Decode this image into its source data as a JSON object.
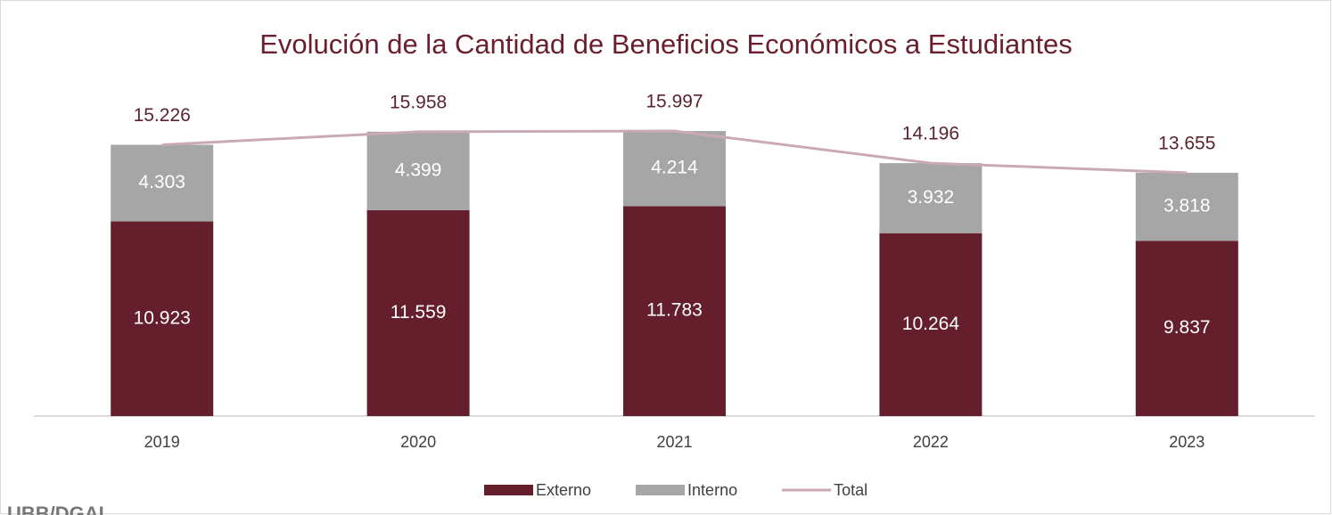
{
  "chart_data": {
    "type": "stacked_bar_line",
    "title": "Evolución de la Cantidad de Beneficios Económicos a Estudiantes",
    "categories": [
      "2019",
      "2020",
      "2021",
      "2022",
      "2023"
    ],
    "series": [
      {
        "name": "Externo",
        "color": "#641e2c",
        "values": [
          10923,
          11559,
          11783,
          10264,
          9837
        ],
        "value_labels": [
          "10.923",
          "11.559",
          "11.783",
          "10.264",
          "9.837"
        ]
      },
      {
        "name": "Interno",
        "color": "#a6a6a6",
        "values": [
          4303,
          4399,
          4214,
          3932,
          3818
        ],
        "value_labels": [
          "4.303",
          "4.399",
          "4.214",
          "3.932",
          "3.818"
        ]
      },
      {
        "name": "Total",
        "type": "line",
        "color": "#c9aab4",
        "values": [
          15226,
          15958,
          15997,
          14196,
          13655
        ],
        "value_labels": [
          "15.226",
          "15.958",
          "15.997",
          "14.196",
          "13.655"
        ]
      }
    ],
    "ylim": [
      0,
      18000
    ],
    "legend": "bottom",
    "footer": "UBB/DGAI"
  }
}
